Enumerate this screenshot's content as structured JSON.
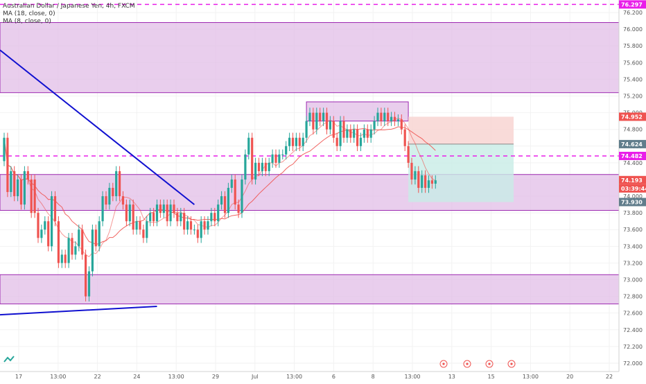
{
  "legend": {
    "line1": "Australian Dollar / Japanese Yen, 4h, FXCM",
    "line2": "MA (18, close, 0)",
    "line3": "MA (8, close, 0)"
  },
  "colors": {
    "up": "#26a69a",
    "down": "#ef5350",
    "zone_fill": "#e1bee7",
    "zone_stroke": "#9c27b0",
    "dashed_level": "#e91ee9",
    "trendline": "#1010d0",
    "ma18": "#ef5350",
    "ma8": "#ef5350",
    "stop_fill": "#f8d2d0",
    "target_fill": "#c8ece6"
  },
  "chart_data": {
    "type": "candlestick",
    "symbol": "AUDJPY",
    "timeframe": "4h",
    "y_axis": {
      "min": 71.9,
      "max": 76.35,
      "ticks": [
        "76.200",
        "76.000",
        "75.800",
        "75.600",
        "75.400",
        "75.200",
        "75.000",
        "74.800",
        "74.600",
        "74.400",
        "74.200",
        "74.000",
        "73.800",
        "73.600",
        "73.400",
        "73.200",
        "73.000",
        "72.800",
        "72.600",
        "72.400",
        "72.200",
        "72.000"
      ]
    },
    "x_axis": {
      "ticks": [
        "17",
        "13:00",
        "22",
        "24",
        "13:00",
        "29",
        "Jul",
        "13:00",
        "6",
        "8",
        "13:00",
        "13",
        "15",
        "13:00",
        "20",
        "22"
      ]
    },
    "price_labels": [
      {
        "value": "76.297",
        "kind": "dashed"
      },
      {
        "value": "74.952",
        "kind": "stop"
      },
      {
        "value": "74.624",
        "kind": "entry"
      },
      {
        "value": "74.482",
        "kind": "dashed"
      },
      {
        "value": "74.193",
        "kind": "last"
      },
      {
        "value": "03:39:44",
        "kind": "countdown"
      },
      {
        "value": "73.930",
        "kind": "target"
      }
    ],
    "horizontal_levels": [
      76.297,
      74.482
    ],
    "zones": [
      {
        "y1": 75.24,
        "y2": 76.08
      },
      {
        "y1": 73.83,
        "y2": 74.26
      },
      {
        "y1": 72.71,
        "y2": 73.06
      },
      {
        "y1": 74.9,
        "y2": 75.13,
        "bar_start": 89,
        "bar_end": 119
      }
    ],
    "position": {
      "entry": 74.624,
      "stop": 74.952,
      "target": 73.93,
      "bar_start": 119,
      "bar_end": 150
    },
    "trendlines": [
      {
        "bar1": 0,
        "p1": 75.75,
        "bar2": 56,
        "p2": 73.9
      },
      {
        "bar1": 0,
        "p1": 72.58,
        "bar2": 45,
        "p2": 72.68
      }
    ],
    "candles": [
      [
        74.42,
        74.7
      ],
      [
        74.7,
        74.05
      ],
      [
        74.05,
        74.3
      ],
      [
        74.3,
        74.0
      ],
      [
        74.0,
        74.2
      ],
      [
        74.2,
        73.9
      ],
      [
        73.9,
        74.3
      ],
      [
        74.3,
        74.2
      ],
      [
        74.2,
        73.8
      ],
      [
        74.2,
        73.8
      ],
      [
        73.8,
        73.5
      ],
      [
        73.5,
        73.6
      ],
      [
        73.6,
        73.7
      ],
      [
        73.7,
        73.4
      ],
      [
        73.4,
        74.0
      ],
      [
        74.0,
        73.7
      ],
      [
        73.7,
        73.2
      ],
      [
        73.2,
        73.3
      ],
      [
        73.3,
        73.2
      ],
      [
        73.2,
        73.5
      ],
      [
        73.5,
        73.3
      ],
      [
        73.3,
        73.4
      ],
      [
        73.4,
        73.6
      ],
      [
        73.6,
        73.3
      ],
      [
        73.3,
        72.8
      ],
      [
        72.8,
        73.1
      ],
      [
        73.1,
        73.6
      ],
      [
        73.6,
        73.4
      ],
      [
        73.4,
        73.7
      ],
      [
        73.7,
        74.0
      ],
      [
        74.0,
        73.9
      ],
      [
        73.9,
        74.1
      ],
      [
        74.1,
        74.0
      ],
      [
        74.0,
        74.3
      ],
      [
        74.3,
        74.0
      ],
      [
        74.0,
        73.9
      ],
      [
        73.9,
        73.7
      ],
      [
        73.7,
        73.9
      ],
      [
        73.9,
        73.6
      ],
      [
        73.6,
        73.7
      ],
      [
        73.7,
        73.6
      ],
      [
        73.6,
        73.5
      ],
      [
        73.5,
        73.7
      ],
      [
        73.7,
        73.8
      ],
      [
        73.8,
        73.7
      ],
      [
        73.7,
        73.9
      ],
      [
        73.9,
        73.8
      ],
      [
        73.8,
        73.9
      ],
      [
        73.9,
        73.7
      ],
      [
        73.7,
        73.9
      ],
      [
        73.9,
        73.8
      ],
      [
        73.8,
        73.7
      ],
      [
        73.7,
        73.8
      ],
      [
        73.8,
        73.6
      ],
      [
        73.6,
        73.7
      ],
      [
        73.7,
        73.6
      ],
      [
        73.6,
        73.6
      ],
      [
        73.6,
        73.5
      ],
      [
        73.5,
        73.7
      ],
      [
        73.7,
        73.6
      ],
      [
        73.6,
        73.7
      ],
      [
        73.7,
        73.8
      ],
      [
        73.8,
        73.7
      ],
      [
        73.7,
        73.9
      ],
      [
        73.9,
        74.0
      ],
      [
        74.0,
        73.8
      ],
      [
        73.8,
        74.1
      ],
      [
        74.1,
        74.2
      ],
      [
        74.2,
        73.9
      ],
      [
        73.9,
        73.8
      ],
      [
        73.8,
        74.2
      ],
      [
        74.2,
        74.5
      ],
      [
        74.5,
        74.7
      ],
      [
        74.7,
        74.2
      ],
      [
        74.2,
        74.4
      ],
      [
        74.4,
        74.3
      ],
      [
        74.3,
        74.4
      ],
      [
        74.4,
        74.3
      ],
      [
        74.3,
        74.4
      ],
      [
        74.4,
        74.5
      ],
      [
        74.5,
        74.4
      ],
      [
        74.4,
        74.5
      ],
      [
        74.5,
        74.5
      ],
      [
        74.5,
        74.6
      ],
      [
        74.6,
        74.7
      ],
      [
        74.7,
        74.6
      ],
      [
        74.6,
        74.7
      ],
      [
        74.7,
        74.6
      ],
      [
        74.6,
        74.7
      ],
      [
        74.7,
        74.9
      ],
      [
        74.9,
        75.0
      ],
      [
        75.0,
        74.8
      ],
      [
        74.8,
        75.0
      ],
      [
        75.0,
        74.9
      ],
      [
        74.9,
        75.0
      ],
      [
        75.0,
        74.8
      ],
      [
        74.8,
        74.9
      ],
      [
        74.9,
        74.7
      ],
      [
        74.7,
        74.6
      ],
      [
        74.6,
        74.9
      ],
      [
        74.9,
        74.7
      ],
      [
        74.7,
        74.8
      ],
      [
        74.8,
        74.7
      ],
      [
        74.7,
        74.8
      ],
      [
        74.8,
        74.6
      ],
      [
        74.6,
        74.7
      ],
      [
        74.7,
        74.8
      ],
      [
        74.8,
        74.7
      ],
      [
        74.7,
        74.8
      ],
      [
        74.8,
        74.9
      ],
      [
        74.9,
        75.0
      ],
      [
        75.0,
        74.9
      ],
      [
        74.9,
        75.0
      ],
      [
        75.0,
        74.9
      ],
      [
        74.9,
        74.95
      ],
      [
        74.95,
        74.9
      ],
      [
        74.9,
        74.92
      ],
      [
        74.92,
        74.8
      ],
      [
        74.8,
        74.6
      ],
      [
        74.6,
        74.4
      ],
      [
        74.4,
        74.2
      ],
      [
        74.2,
        74.3
      ],
      [
        74.3,
        74.1
      ],
      [
        74.1,
        74.25
      ],
      [
        74.25,
        74.1
      ],
      [
        74.1,
        74.19
      ],
      [
        74.19,
        74.15
      ],
      [
        74.15,
        74.19
      ]
    ]
  }
}
